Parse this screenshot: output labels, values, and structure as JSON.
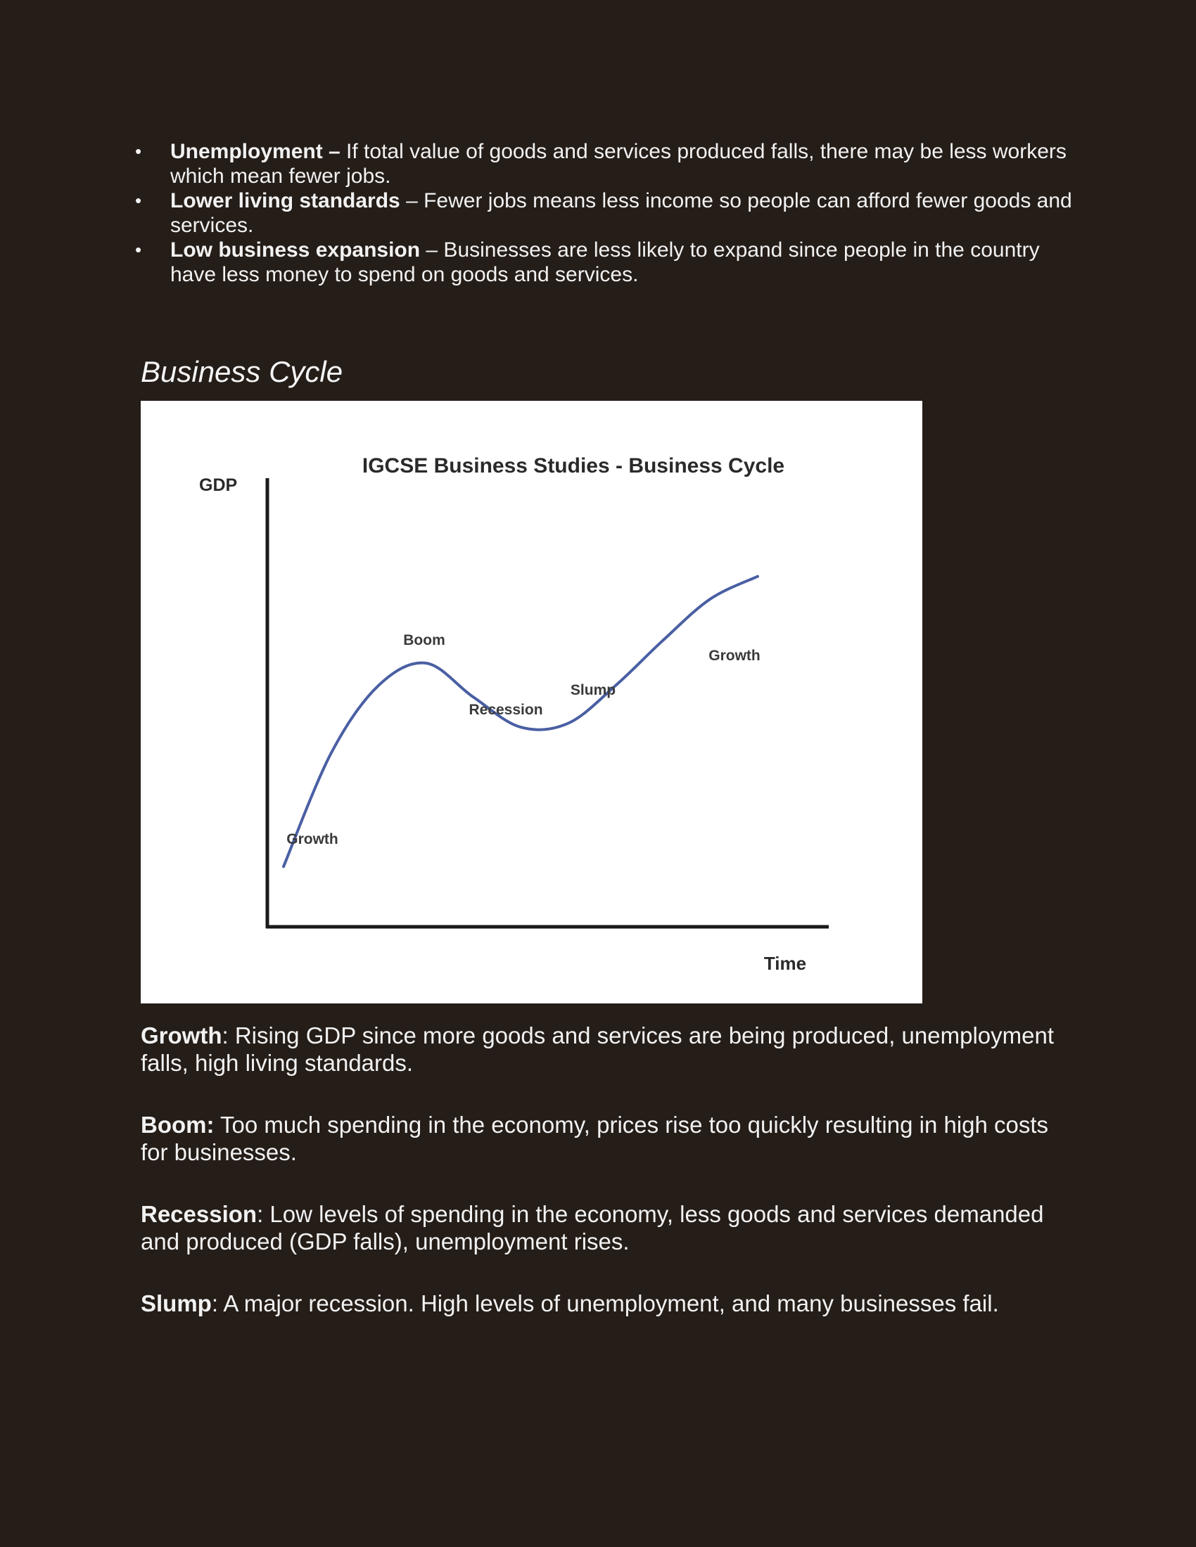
{
  "bullets": [
    {
      "term": "Unemployment –",
      "text": " If total value of goods and services produced falls, there may be less workers which mean fewer jobs."
    },
    {
      "term": "Lower living standards",
      "text": " – Fewer jobs means less income so people can afford fewer goods and services."
    },
    {
      "term": "Low business expansion",
      "text": " – Businesses are less likely to expand since people in the country have less money to spend on goods and services."
    }
  ],
  "section_title": "Business Cycle",
  "chart_data": {
    "type": "line",
    "title": "IGCSE Business Studies - Business Cycle",
    "xlabel": "Time",
    "ylabel": "GDP",
    "grid": false,
    "legend": "none",
    "line_color": "#4a5fa3",
    "x": [
      0,
      1,
      2,
      3,
      4,
      5,
      6,
      7,
      8,
      9,
      10
    ],
    "y": [
      10,
      40,
      58,
      64,
      55,
      47,
      48,
      58,
      70,
      81,
      87
    ],
    "annotations": [
      {
        "label": "Growth",
        "x": 1
      },
      {
        "label": "Boom",
        "x": 3
      },
      {
        "label": "Recession",
        "x": 4.5
      },
      {
        "label": "Slump",
        "x": 6
      },
      {
        "label": "Growth",
        "x": 8.5
      }
    ]
  },
  "definitions": [
    {
      "term": "Growth",
      "text": ": Rising GDP since more goods and services are being produced, unemployment falls, high living standards."
    },
    {
      "term": "Boom:",
      "text": " Too much spending in the economy, prices rise too quickly resulting in high costs for businesses."
    },
    {
      "term": "Recession",
      "text": ": Low levels of spending in the economy, less goods and services demanded and produced (GDP falls), unemployment rises."
    },
    {
      "term": "Slump",
      "text": ": A major recession. High levels of unemployment, and many businesses fail."
    }
  ]
}
